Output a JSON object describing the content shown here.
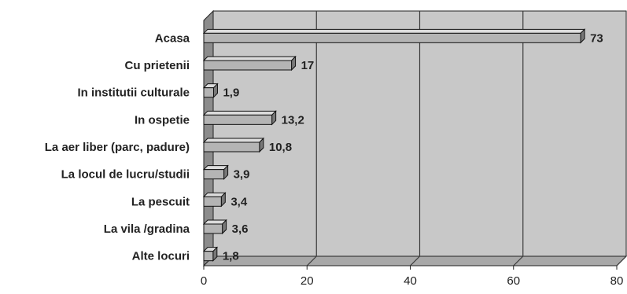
{
  "chart_data": {
    "type": "bar",
    "orientation": "horizontal",
    "style": "3d",
    "categories": [
      "Acasa",
      "Cu prietenii",
      "In institutii culturale",
      "In ospetie",
      "La aer liber (parc, padure)",
      "La locul de lucru/studii",
      "La pescuit",
      "La vila /gradina",
      "Alte locuri"
    ],
    "values": [
      73,
      17,
      1.9,
      13.2,
      10.8,
      3.9,
      3.4,
      3.6,
      1.8
    ],
    "value_labels": [
      "73",
      "17",
      "1,9",
      "13,2",
      "10,8",
      "3,9",
      "3,4",
      "3,6",
      "1,8"
    ],
    "xlim": [
      0,
      80
    ],
    "xticks": [
      "0",
      "20",
      "40",
      "60",
      "80"
    ],
    "grid": true,
    "legend": "none",
    "title": "",
    "xlabel": "",
    "ylabel": "",
    "colors": {
      "plot_wall": "#c8c8c8",
      "plot_floor": "#a8a8a8",
      "plot_side": "#8c8c8c",
      "bar_front": "#b4b4b4",
      "bar_top": "#dcdcdc",
      "bar_side": "#787878",
      "grid": "#3c3c3c",
      "text": "#222222"
    }
  }
}
